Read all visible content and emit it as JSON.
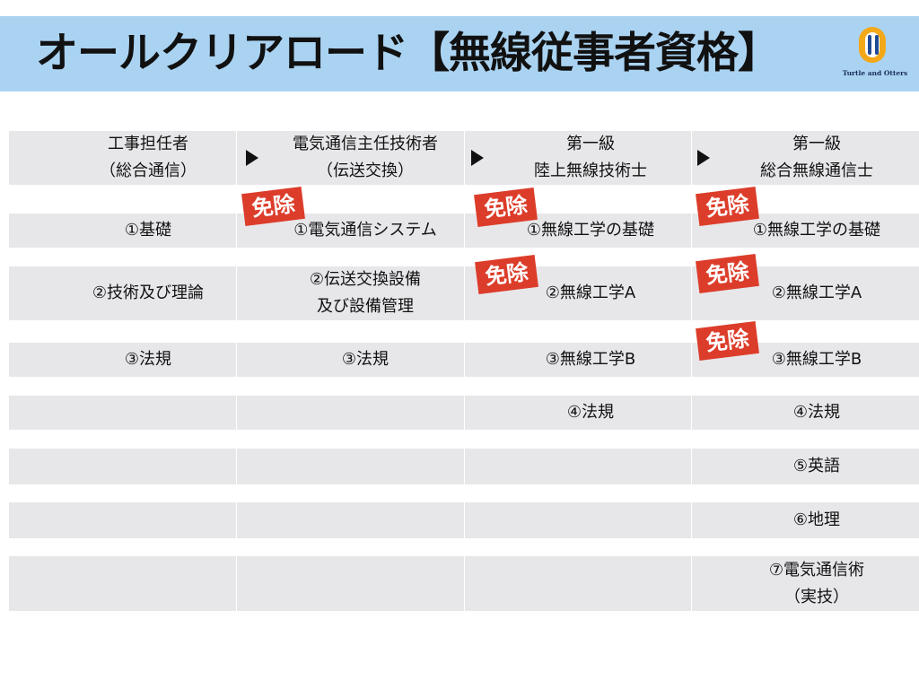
{
  "title": "オールクリアロード【無線従事者資格】",
  "logo": {
    "text": "Turtle and Otters",
    "color": "#f3a81a"
  },
  "colors": {
    "banner": "#aad3f2",
    "row_band": "#e7e7ea",
    "badge": "#dc3d2a"
  },
  "columns": [
    {
      "line1": "工事担任者",
      "line2": "（総合通信）"
    },
    {
      "line1": "電気通信主任技術者",
      "line2": "（伝送交換）"
    },
    {
      "line1": "第一級",
      "line2": "陸上無線技術士"
    },
    {
      "line1": "第一級",
      "line2": "総合無線通信士"
    }
  ],
  "arrow_icon": "right-triangle-icon",
  "badge_label": "免除",
  "rows": [
    [
      "①基礎",
      "①電気通信システム",
      "①無線工学の基礎",
      "①無線工学の基礎"
    ],
    [
      "②技術及び理論",
      "②伝送交換設備\n及び設備管理",
      "②無線工学A",
      "②無線工学A"
    ],
    [
      "③法規",
      "③法規",
      "③無線工学B",
      "③無線工学B"
    ],
    [
      "",
      "",
      "④法規",
      "④法規"
    ],
    [
      "",
      "",
      "",
      "⑤英語"
    ],
    [
      "",
      "",
      "",
      "⑥地理"
    ],
    [
      "",
      "",
      "",
      "⑦電気通信術\n（実技）"
    ]
  ]
}
